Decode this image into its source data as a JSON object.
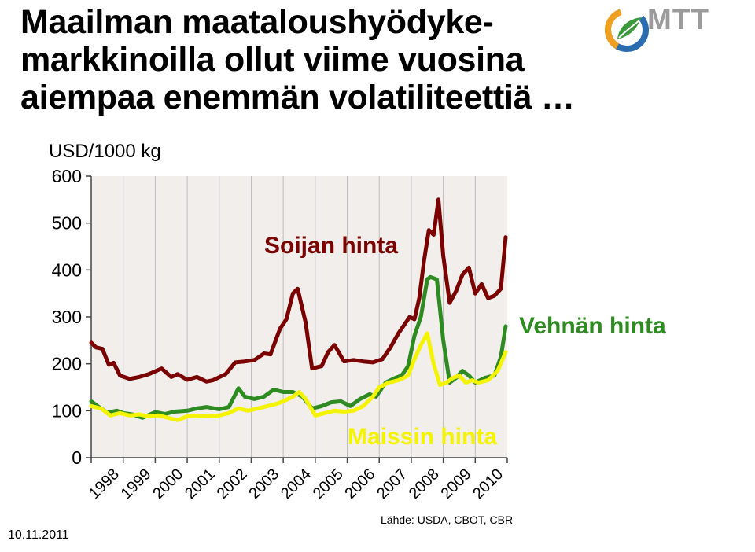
{
  "slide": {
    "title": "Maailman maataloushyödyke-markkinoilla ollut viime vuosina aiempaa enemmän volatiliteettiä …",
    "date": "10.11.2011",
    "source": "Lähde: USDA, CBOT, CBR",
    "logo_text": "MTT"
  },
  "colors": {
    "soy": "#7b0000",
    "wheat": "#2e8b22",
    "maize": "#f4f400",
    "plot_bg": "#f1eeeb",
    "grid": "#bdbdbd"
  },
  "chart_data": {
    "type": "line",
    "ylabel": "USD/1000 kg",
    "ylim": [
      0,
      600
    ],
    "yticks": [
      0,
      100,
      200,
      300,
      400,
      500,
      600
    ],
    "xlim": [
      1998,
      2011
    ],
    "xticks": [
      "1998",
      "1999",
      "2000",
      "2001",
      "2002",
      "2003",
      "2004",
      "2005",
      "2006",
      "2007",
      "2008",
      "2009",
      "2010"
    ],
    "grid": true,
    "series": [
      {
        "name": "Soijan hinta",
        "color": "#7b0000",
        "x": [
          1998.0,
          1998.15,
          1998.35,
          1998.55,
          1998.7,
          1998.9,
          1999.2,
          1999.5,
          1999.8,
          2000.2,
          2000.5,
          2000.7,
          2001.0,
          2001.3,
          2001.6,
          2001.8,
          2002.2,
          2002.5,
          2002.8,
          2003.1,
          2003.4,
          2003.6,
          2003.9,
          2004.1,
          2004.3,
          2004.45,
          2004.7,
          2004.9,
          2005.2,
          2005.4,
          2005.6,
          2005.9,
          2006.2,
          2006.5,
          2006.8,
          2007.1,
          2007.35,
          2007.6,
          2007.8,
          2007.95,
          2008.1,
          2008.25,
          2008.4,
          2008.55,
          2008.7,
          2008.85,
          2009.0,
          2009.2,
          2009.4,
          2009.6,
          2009.8,
          2010.0,
          2010.2,
          2010.4,
          2010.6,
          2010.8,
          2010.95
        ],
        "y": [
          245,
          235,
          232,
          198,
          202,
          175,
          168,
          172,
          178,
          190,
          172,
          178,
          166,
          172,
          162,
          165,
          178,
          203,
          205,
          208,
          222,
          220,
          275,
          295,
          350,
          360,
          288,
          190,
          195,
          225,
          240,
          205,
          208,
          205,
          203,
          210,
          235,
          265,
          285,
          300,
          295,
          340,
          420,
          485,
          475,
          550,
          430,
          330,
          355,
          390,
          405,
          350,
          370,
          340,
          345,
          360,
          470
        ]
      },
      {
        "name": "Vehnän hinta",
        "color": "#2e8b22",
        "x": [
          1998.0,
          1998.2,
          1998.5,
          1998.8,
          1999.0,
          1999.3,
          1999.6,
          2000.0,
          2000.3,
          2000.6,
          2001.0,
          2001.3,
          2001.6,
          2002.0,
          2002.3,
          2002.6,
          2002.8,
          2003.1,
          2003.4,
          2003.7,
          2004.0,
          2004.3,
          2004.6,
          2004.9,
          2005.2,
          2005.5,
          2005.8,
          2006.1,
          2006.4,
          2006.7,
          2006.9,
          2007.2,
          2007.5,
          2007.7,
          2007.9,
          2008.1,
          2008.3,
          2008.5,
          2008.6,
          2008.8,
          2009.0,
          2009.2,
          2009.4,
          2009.6,
          2009.8,
          2010.0,
          2010.3,
          2010.6,
          2010.8,
          2010.95
        ],
        "y": [
          120,
          110,
          96,
          100,
          95,
          92,
          85,
          97,
          93,
          98,
          100,
          105,
          108,
          103,
          108,
          148,
          130,
          125,
          130,
          145,
          140,
          140,
          130,
          105,
          110,
          118,
          120,
          110,
          125,
          135,
          130,
          160,
          170,
          175,
          195,
          260,
          300,
          380,
          385,
          380,
          250,
          160,
          170,
          185,
          175,
          160,
          170,
          175,
          215,
          280
        ]
      },
      {
        "name": "Maissin hinta",
        "color": "#f4f400",
        "x": [
          1998.0,
          1998.3,
          1998.6,
          1998.9,
          1999.2,
          1999.5,
          1999.8,
          2000.1,
          2000.4,
          2000.7,
          2001.0,
          2001.3,
          2001.6,
          2002.0,
          2002.3,
          2002.6,
          2002.9,
          2003.2,
          2003.5,
          2003.8,
          2004.0,
          2004.3,
          2004.5,
          2004.7,
          2005.0,
          2005.3,
          2005.6,
          2005.9,
          2006.2,
          2006.5,
          2006.8,
          2007.0,
          2007.3,
          2007.6,
          2007.9,
          2008.1,
          2008.3,
          2008.5,
          2008.7,
          2008.9,
          2009.1,
          2009.3,
          2009.5,
          2009.7,
          2009.9,
          2010.1,
          2010.4,
          2010.7,
          2010.95
        ],
        "y": [
          110,
          105,
          90,
          95,
          90,
          92,
          88,
          90,
          85,
          80,
          88,
          90,
          88,
          90,
          95,
          105,
          100,
          105,
          110,
          115,
          120,
          130,
          140,
          125,
          90,
          95,
          100,
          98,
          100,
          110,
          130,
          150,
          160,
          165,
          175,
          210,
          240,
          265,
          200,
          155,
          160,
          170,
          175,
          160,
          165,
          160,
          165,
          185,
          225
        ]
      }
    ],
    "annotations": [
      {
        "text": "Soijan hinta",
        "color": "#7b0000"
      },
      {
        "text": "Vehnän hinta",
        "color": "#2e8b22"
      },
      {
        "text": "Maissin hinta",
        "color": "#f4f400"
      }
    ]
  }
}
